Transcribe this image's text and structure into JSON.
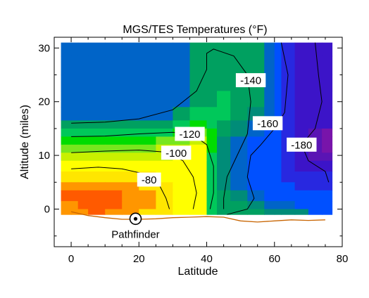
{
  "chart_data": {
    "type": "heatmap",
    "title": "MGS/TES Temperatures (°F)",
    "xlabel": "Latitude",
    "ylabel": "Altitude (miles)",
    "xlim": [
      -5,
      80
    ],
    "ylim": [
      -7,
      32
    ],
    "x_ticks": [
      0,
      20,
      40,
      60,
      80
    ],
    "y_ticks": [
      0,
      10,
      20,
      30
    ],
    "grid": false,
    "legend": "none",
    "palette": {
      "-75": "#ff5a00",
      "-80": "#ff9600",
      "-95": "#ffe600",
      "-105": "#ffff00",
      "-110": "#c8f000",
      "-115": "#78e61e",
      "-120": "#00dc00",
      "-125": "#00c85a",
      "-135": "#00a060",
      "-145": "#008c78",
      "-155": "#0064c8",
      "-160": "#0050ff",
      "-170": "#2828e0",
      "-175": "#3c14c8",
      "-180": "#5a14b4",
      "-185": "#7814aa"
    },
    "temperature_grid": {
      "altitude_bands": [
        [
          28.5,
          31
        ],
        [
          25,
          28.5
        ],
        [
          22,
          25
        ],
        [
          19,
          22
        ],
        [
          16.5,
          19
        ],
        [
          15,
          16.5
        ],
        [
          13.5,
          15
        ],
        [
          12,
          13.5
        ],
        [
          10.5,
          12
        ],
        [
          9,
          10.5
        ],
        [
          7,
          9
        ],
        [
          5,
          7
        ],
        [
          3.5,
          5
        ],
        [
          1.5,
          3.5
        ],
        [
          0,
          1.5
        ],
        [
          -1,
          0
        ]
      ],
      "latitude_edges": [
        -3,
        0,
        2,
        5,
        10,
        15,
        20,
        25,
        30,
        35,
        40,
        43,
        47,
        52,
        57,
        60,
        62,
        66,
        70,
        74,
        77
      ],
      "values": [
        [
          -155,
          -155,
          -155,
          -155,
          -155,
          -155,
          -155,
          -155,
          -155,
          -135,
          -135,
          -135,
          -135,
          -135,
          -155,
          -160,
          -170,
          -175,
          -175,
          -175
        ],
        [
          -155,
          -155,
          -155,
          -155,
          -155,
          -155,
          -155,
          -155,
          -155,
          -135,
          -135,
          -135,
          -135,
          -135,
          -155,
          -160,
          -170,
          -175,
          -175,
          -175
        ],
        [
          -155,
          -155,
          -155,
          -155,
          -155,
          -155,
          -155,
          -155,
          -155,
          -135,
          -135,
          -135,
          -135,
          -135,
          -155,
          -160,
          -170,
          -175,
          -175,
          -175
        ],
        [
          -155,
          -155,
          -155,
          -155,
          -155,
          -155,
          -155,
          -155,
          -155,
          -135,
          -135,
          -125,
          -135,
          -135,
          -155,
          -160,
          -170,
          -175,
          -175,
          -175
        ],
        [
          -155,
          -155,
          -155,
          -155,
          -155,
          -155,
          -155,
          -155,
          -135,
          -125,
          -125,
          -125,
          -135,
          -145,
          -155,
          -160,
          -170,
          -175,
          -175,
          -175
        ],
        [
          -135,
          -135,
          -135,
          -135,
          -135,
          -135,
          -135,
          -135,
          -125,
          -120,
          -125,
          -135,
          -145,
          -155,
          -160,
          -160,
          -170,
          -175,
          -175,
          -175
        ],
        [
          -125,
          -125,
          -125,
          -125,
          -125,
          -125,
          -125,
          -125,
          -120,
          -115,
          -120,
          -135,
          -145,
          -155,
          -160,
          -160,
          -170,
          -175,
          -180,
          -185
        ],
        [
          -120,
          -120,
          -120,
          -120,
          -120,
          -120,
          -120,
          -115,
          -115,
          -110,
          -120,
          -145,
          -155,
          -160,
          -160,
          -160,
          -170,
          -175,
          -180,
          -185
        ],
        [
          -115,
          -115,
          -115,
          -115,
          -115,
          -115,
          -115,
          -110,
          -110,
          -105,
          -120,
          -145,
          -155,
          -160,
          -160,
          -160,
          -170,
          -175,
          -180,
          -185
        ],
        [
          -110,
          -110,
          -110,
          -110,
          -110,
          -110,
          -110,
          -110,
          -105,
          -105,
          -125,
          -145,
          -155,
          -160,
          -160,
          -160,
          -170,
          -175,
          -180,
          -180
        ],
        [
          -105,
          -105,
          -105,
          -105,
          -105,
          -105,
          -105,
          -105,
          -105,
          -105,
          -125,
          -145,
          -155,
          -160,
          -160,
          -160,
          -170,
          -175,
          -175,
          -175
        ],
        [
          -95,
          -95,
          -95,
          -95,
          -95,
          -95,
          -95,
          -105,
          -105,
          -105,
          -125,
          -145,
          -155,
          -160,
          -160,
          -160,
          -170,
          -170,
          -170,
          -170
        ],
        [
          -80,
          -80,
          -80,
          -80,
          -80,
          -80,
          -95,
          -95,
          -105,
          -105,
          -125,
          -145,
          -155,
          -160,
          -160,
          -160,
          -160,
          -170,
          -170,
          -170
        ],
        [
          -75,
          -75,
          -75,
          -75,
          -75,
          -80,
          -80,
          -95,
          -105,
          -105,
          -125,
          -135,
          -145,
          -155,
          -160,
          -160,
          -160,
          -160,
          -160,
          -160
        ],
        [
          -80,
          -80,
          -75,
          -75,
          -75,
          -80,
          -80,
          -95,
          -105,
          -105,
          -125,
          -135,
          -135,
          -145,
          -155,
          -155,
          -155,
          -160,
          -160,
          -160
        ],
        [
          -80,
          -80,
          -80,
          -75,
          -80,
          -80,
          -95,
          -95,
          -105,
          -105,
          -125,
          -135,
          -135,
          -135,
          -145,
          -145,
          -145,
          -145,
          -160,
          -160
        ]
      ]
    },
    "contours": [
      {
        "label": "-80",
        "label_at": [
          23,
          5.5
        ],
        "points": [
          [
            0,
            7.5
          ],
          [
            8,
            7.8
          ],
          [
            15,
            7.5
          ],
          [
            22,
            6.5
          ],
          [
            26,
            4.5
          ],
          [
            28,
            2
          ],
          [
            29,
            0
          ]
        ]
      },
      {
        "label": "-100",
        "label_at": [
          31,
          10.5
        ],
        "points": [
          [
            0,
            10.5
          ],
          [
            10,
            10.8
          ],
          [
            20,
            11
          ],
          [
            28,
            10.6
          ],
          [
            33,
            9
          ],
          [
            36,
            6
          ],
          [
            37,
            3
          ],
          [
            36,
            0
          ]
        ]
      },
      {
        "label": "-120",
        "label_at": [
          35,
          14
        ],
        "points": [
          [
            0,
            13.5
          ],
          [
            10,
            13.6
          ],
          [
            20,
            14
          ],
          [
            30,
            14.3
          ],
          [
            36,
            13.8
          ],
          [
            40,
            12
          ],
          [
            42,
            8
          ],
          [
            42,
            3
          ],
          [
            41,
            0
          ]
        ]
      },
      {
        "label": "-140",
        "label_at": [
          53,
          24
        ],
        "points": [
          [
            0,
            16
          ],
          [
            10,
            16.2
          ],
          [
            20,
            16.8
          ],
          [
            30,
            18.5
          ],
          [
            37,
            22
          ],
          [
            40,
            26
          ],
          [
            40,
            29
          ],
          [
            42,
            29.8
          ],
          [
            48,
            28.5
          ],
          [
            52,
            25
          ],
          [
            53,
            20
          ],
          [
            52,
            14
          ],
          [
            49,
            10
          ],
          [
            46,
            6
          ],
          [
            45,
            2
          ],
          [
            45,
            0
          ]
        ]
      },
      {
        "label": "-160",
        "label_at": [
          58,
          16
        ],
        "points": [
          [
            62,
            31
          ],
          [
            64,
            25
          ],
          [
            63,
            18
          ],
          [
            60,
            15
          ],
          [
            56,
            12
          ],
          [
            53,
            10
          ],
          [
            52,
            6
          ],
          [
            54,
            2
          ],
          [
            52,
            0
          ],
          [
            46,
            -1
          ]
        ]
      },
      {
        "label": "-180",
        "label_at": [
          68,
          12
        ],
        "points": [
          [
            72,
            31
          ],
          [
            73,
            25
          ],
          [
            74,
            20
          ],
          [
            72,
            15
          ],
          [
            68,
            12
          ],
          [
            70,
            9
          ],
          [
            75,
            7
          ],
          [
            76,
            5
          ]
        ]
      }
    ],
    "surface": {
      "color": "#c86400",
      "points": [
        [
          0,
          -0.5
        ],
        [
          5,
          -1.2
        ],
        [
          10,
          -1.6
        ],
        [
          15,
          -1.9
        ],
        [
          20,
          -1.9
        ],
        [
          25,
          -1.8
        ],
        [
          30,
          -1.6
        ],
        [
          35,
          -1.5
        ],
        [
          40,
          -1.4
        ],
        [
          45,
          -1.5
        ],
        [
          50,
          -2.2
        ],
        [
          55,
          -2.4
        ],
        [
          60,
          -2.2
        ],
        [
          65,
          -2.0
        ],
        [
          70,
          -2.1
        ],
        [
          75,
          -2.0
        ]
      ]
    },
    "annotations": [
      {
        "text": "Pathfinder",
        "marker_at": [
          19,
          -1.8
        ]
      }
    ]
  }
}
